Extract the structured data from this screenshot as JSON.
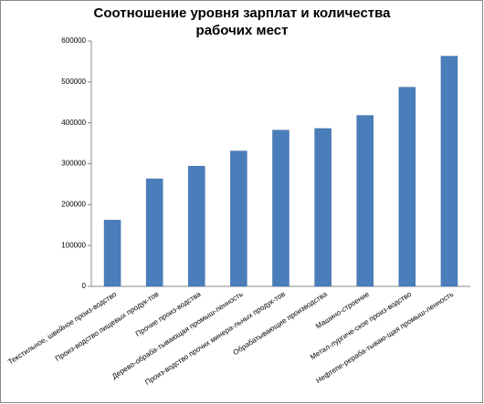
{
  "chart_data": {
    "type": "bar",
    "title": [
      "Соотношение уровня зарплат и количества",
      "рабочих мест"
    ],
    "categories": [
      "Текстильное, швейное произ-водство",
      "Произ-водство пищевых продук-тов",
      "Прочие произ-водства",
      "Дерево-обраба-тывающая промыш-ленность",
      "Произ-водство прочих минера-льных продук-тов",
      "Обрабатывающие производства",
      "Машино-строение",
      "Метал-лургиче-ское произ-водство",
      "Нефтепе-рераба-тываю-щая промыш-ленность"
    ],
    "values": [
      162000,
      263000,
      294000,
      331000,
      382000,
      386000,
      418000,
      487000,
      563000
    ],
    "color": "#4a7ebb",
    "ylim": [
      0,
      600000
    ],
    "yticks": [
      0,
      100000,
      200000,
      300000,
      400000,
      500000,
      600000
    ],
    "grid": false
  }
}
